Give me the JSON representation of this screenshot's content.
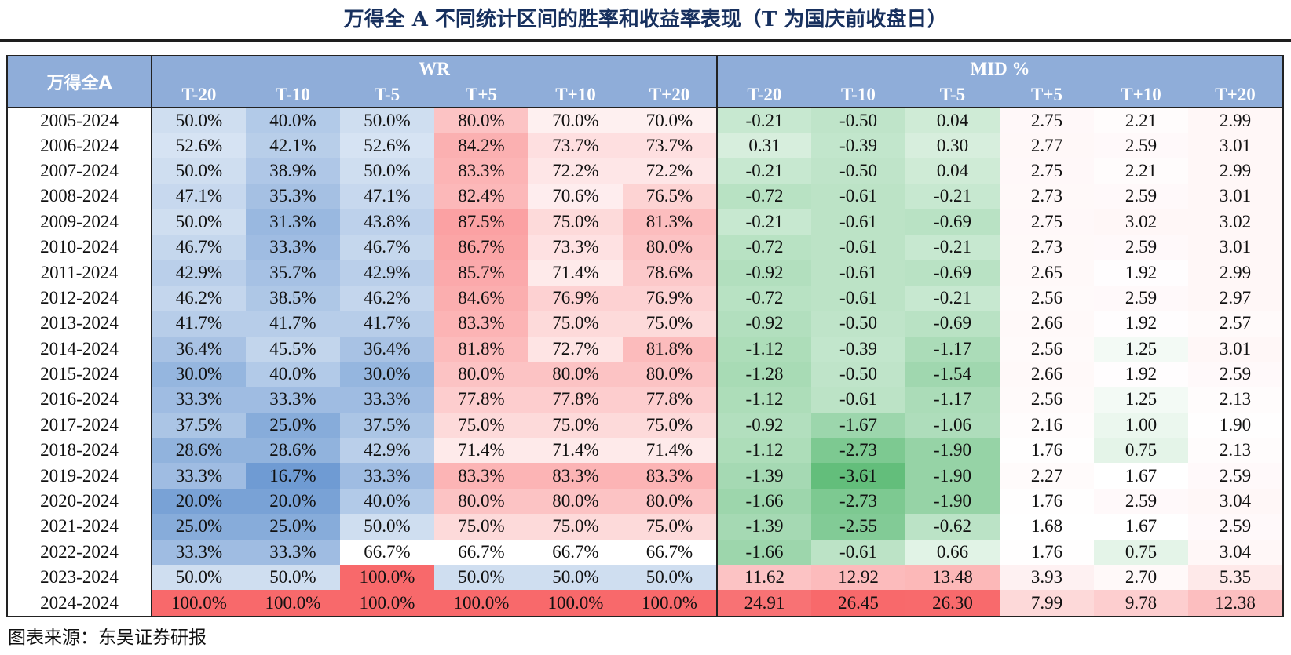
{
  "title": "万得全 A 不同统计区间的胜率和收益率表现（T 为国庆前收盘日）",
  "source": "图表来源：东吴证券研报",
  "chart_data": {
    "type": "heatmap",
    "row_header": "万得全A",
    "groups": [
      {
        "name": "WR",
        "columns": [
          "T-20",
          "T-10",
          "T-5",
          "T+5",
          "T+10",
          "T+20"
        ]
      },
      {
        "name": "MID %",
        "columns": [
          "T-20",
          "T-10",
          "T-5",
          "T+5",
          "T+10",
          "T+20"
        ]
      }
    ],
    "rows": [
      {
        "label": "2005-2024",
        "wr": [
          "50.0%",
          "40.0%",
          "50.0%",
          "80.0%",
          "70.0%",
          "70.0%"
        ],
        "mid": [
          "-0.21",
          "-0.50",
          "0.04",
          "2.75",
          "2.21",
          "2.99"
        ]
      },
      {
        "label": "2006-2024",
        "wr": [
          "52.6%",
          "42.1%",
          "52.6%",
          "84.2%",
          "73.7%",
          "73.7%"
        ],
        "mid": [
          "0.31",
          "-0.39",
          "0.30",
          "2.77",
          "2.59",
          "3.01"
        ]
      },
      {
        "label": "2007-2024",
        "wr": [
          "50.0%",
          "38.9%",
          "50.0%",
          "83.3%",
          "72.2%",
          "72.2%"
        ],
        "mid": [
          "-0.21",
          "-0.50",
          "0.04",
          "2.75",
          "2.21",
          "2.99"
        ]
      },
      {
        "label": "2008-2024",
        "wr": [
          "47.1%",
          "35.3%",
          "47.1%",
          "82.4%",
          "70.6%",
          "76.5%"
        ],
        "mid": [
          "-0.72",
          "-0.61",
          "-0.21",
          "2.73",
          "2.59",
          "3.01"
        ]
      },
      {
        "label": "2009-2024",
        "wr": [
          "50.0%",
          "31.3%",
          "43.8%",
          "87.5%",
          "75.0%",
          "81.3%"
        ],
        "mid": [
          "-0.21",
          "-0.61",
          "-0.69",
          "2.75",
          "3.02",
          "3.02"
        ]
      },
      {
        "label": "2010-2024",
        "wr": [
          "46.7%",
          "33.3%",
          "46.7%",
          "86.7%",
          "73.3%",
          "80.0%"
        ],
        "mid": [
          "-0.72",
          "-0.61",
          "-0.21",
          "2.73",
          "2.59",
          "3.01"
        ]
      },
      {
        "label": "2011-2024",
        "wr": [
          "42.9%",
          "35.7%",
          "42.9%",
          "85.7%",
          "71.4%",
          "78.6%"
        ],
        "mid": [
          "-0.92",
          "-0.61",
          "-0.69",
          "2.65",
          "1.92",
          "2.99"
        ]
      },
      {
        "label": "2012-2024",
        "wr": [
          "46.2%",
          "38.5%",
          "46.2%",
          "84.6%",
          "76.9%",
          "76.9%"
        ],
        "mid": [
          "-0.72",
          "-0.61",
          "-0.21",
          "2.56",
          "2.59",
          "2.97"
        ]
      },
      {
        "label": "2013-2024",
        "wr": [
          "41.7%",
          "41.7%",
          "41.7%",
          "83.3%",
          "75.0%",
          "75.0%"
        ],
        "mid": [
          "-0.92",
          "-0.50",
          "-0.69",
          "2.66",
          "1.92",
          "2.57"
        ]
      },
      {
        "label": "2014-2024",
        "wr": [
          "36.4%",
          "45.5%",
          "36.4%",
          "81.8%",
          "72.7%",
          "81.8%"
        ],
        "mid": [
          "-1.12",
          "-0.39",
          "-1.17",
          "2.56",
          "1.25",
          "3.01"
        ]
      },
      {
        "label": "2015-2024",
        "wr": [
          "30.0%",
          "40.0%",
          "30.0%",
          "80.0%",
          "80.0%",
          "80.0%"
        ],
        "mid": [
          "-1.28",
          "-0.50",
          "-1.54",
          "2.66",
          "1.92",
          "2.59"
        ]
      },
      {
        "label": "2016-2024",
        "wr": [
          "33.3%",
          "33.3%",
          "33.3%",
          "77.8%",
          "77.8%",
          "77.8%"
        ],
        "mid": [
          "-1.12",
          "-0.61",
          "-1.17",
          "2.56",
          "1.25",
          "2.13"
        ]
      },
      {
        "label": "2017-2024",
        "wr": [
          "37.5%",
          "25.0%",
          "37.5%",
          "75.0%",
          "75.0%",
          "75.0%"
        ],
        "mid": [
          "-0.92",
          "-1.67",
          "-1.06",
          "2.16",
          "1.00",
          "1.90"
        ]
      },
      {
        "label": "2018-2024",
        "wr": [
          "28.6%",
          "28.6%",
          "42.9%",
          "71.4%",
          "71.4%",
          "71.4%"
        ],
        "mid": [
          "-1.12",
          "-2.73",
          "-1.90",
          "1.76",
          "0.75",
          "2.13"
        ]
      },
      {
        "label": "2019-2024",
        "wr": [
          "33.3%",
          "16.7%",
          "33.3%",
          "83.3%",
          "83.3%",
          "83.3%"
        ],
        "mid": [
          "-1.39",
          "-3.61",
          "-1.90",
          "2.27",
          "1.67",
          "2.59"
        ]
      },
      {
        "label": "2020-2024",
        "wr": [
          "20.0%",
          "20.0%",
          "40.0%",
          "80.0%",
          "80.0%",
          "80.0%"
        ],
        "mid": [
          "-1.66",
          "-2.73",
          "-1.90",
          "1.76",
          "2.59",
          "3.04"
        ]
      },
      {
        "label": "2021-2024",
        "wr": [
          "25.0%",
          "25.0%",
          "50.0%",
          "75.0%",
          "75.0%",
          "75.0%"
        ],
        "mid": [
          "-1.39",
          "-2.55",
          "-0.62",
          "1.68",
          "1.67",
          "2.59"
        ]
      },
      {
        "label": "2022-2024",
        "wr": [
          "33.3%",
          "33.3%",
          "66.7%",
          "66.7%",
          "66.7%",
          "66.7%"
        ],
        "mid": [
          "-1.66",
          "-0.61",
          "0.66",
          "1.76",
          "0.75",
          "3.04"
        ]
      },
      {
        "label": "2023-2024",
        "wr": [
          "50.0%",
          "50.0%",
          "100.0%",
          "50.0%",
          "50.0%",
          "50.0%"
        ],
        "mid": [
          "11.62",
          "12.92",
          "13.48",
          "3.93",
          "2.70",
          "5.35"
        ]
      },
      {
        "label": "2024-2024",
        "wr": [
          "100.0%",
          "100.0%",
          "100.0%",
          "100.0%",
          "100.0%",
          "100.0%"
        ],
        "mid": [
          "24.91",
          "26.45",
          "26.30",
          "7.99",
          "9.78",
          "12.38"
        ]
      }
    ],
    "colors": {
      "header_bg": "#8fadd9",
      "low_blue": "#6f9bd3",
      "mid_white": "#ffffff",
      "high_red": "#f8696b",
      "low_green": "#63be7b"
    }
  }
}
